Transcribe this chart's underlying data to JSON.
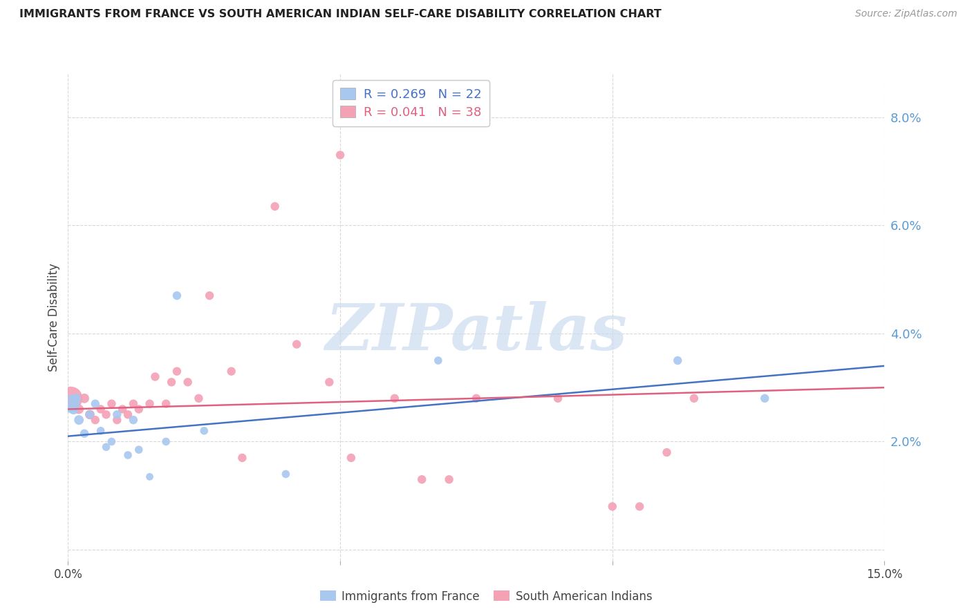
{
  "title": "IMMIGRANTS FROM FRANCE VS SOUTH AMERICAN INDIAN SELF-CARE DISABILITY CORRELATION CHART",
  "source": "Source: ZipAtlas.com",
  "ylabel": "Self-Care Disability",
  "yticks": [
    0.0,
    0.02,
    0.04,
    0.06,
    0.08
  ],
  "ytick_labels": [
    "",
    "2.0%",
    "4.0%",
    "6.0%",
    "8.0%"
  ],
  "xlim": [
    0.0,
    0.15
  ],
  "ylim": [
    -0.002,
    0.088
  ],
  "legend_label_france": "R = 0.269   N = 22",
  "legend_label_sai": "R = 0.041   N = 38",
  "france_color": "#a8c8f0",
  "france_line_color": "#4472c4",
  "sai_color": "#f4a0b5",
  "sai_line_color": "#e06080",
  "background_color": "#ffffff",
  "grid_color": "#d8d8d8",
  "watermark_text": "ZIPatlas",
  "watermark_color": "#ccdcf0",
  "france_x": [
    0.0005,
    0.001,
    0.0015,
    0.002,
    0.003,
    0.004,
    0.005,
    0.006,
    0.007,
    0.008,
    0.009,
    0.011,
    0.012,
    0.013,
    0.015,
    0.018,
    0.02,
    0.025,
    0.04,
    0.068,
    0.112,
    0.128
  ],
  "france_y": [
    0.027,
    0.026,
    0.028,
    0.024,
    0.0215,
    0.025,
    0.027,
    0.022,
    0.019,
    0.02,
    0.025,
    0.0175,
    0.024,
    0.0185,
    0.0135,
    0.02,
    0.047,
    0.022,
    0.014,
    0.035,
    0.035,
    0.028
  ],
  "france_size": [
    350,
    120,
    100,
    100,
    80,
    80,
    80,
    70,
    70,
    70,
    80,
    70,
    80,
    70,
    60,
    70,
    80,
    70,
    70,
    70,
    80,
    80
  ],
  "sai_x": [
    0.0005,
    0.001,
    0.002,
    0.003,
    0.004,
    0.005,
    0.006,
    0.007,
    0.008,
    0.009,
    0.01,
    0.011,
    0.012,
    0.013,
    0.015,
    0.016,
    0.018,
    0.019,
    0.02,
    0.022,
    0.024,
    0.026,
    0.03,
    0.032,
    0.038,
    0.042,
    0.048,
    0.05,
    0.052,
    0.06,
    0.065,
    0.07,
    0.075,
    0.09,
    0.1,
    0.105,
    0.11,
    0.115
  ],
  "sai_y": [
    0.028,
    0.027,
    0.026,
    0.028,
    0.025,
    0.024,
    0.026,
    0.025,
    0.027,
    0.024,
    0.026,
    0.025,
    0.027,
    0.026,
    0.027,
    0.032,
    0.027,
    0.031,
    0.033,
    0.031,
    0.028,
    0.047,
    0.033,
    0.017,
    0.0635,
    0.038,
    0.031,
    0.073,
    0.017,
    0.028,
    0.013,
    0.013,
    0.028,
    0.028,
    0.008,
    0.008,
    0.018,
    0.028
  ],
  "sai_size": [
    600,
    120,
    100,
    100,
    100,
    80,
    80,
    80,
    80,
    80,
    80,
    80,
    80,
    80,
    80,
    80,
    80,
    80,
    80,
    80,
    80,
    80,
    80,
    80,
    80,
    80,
    80,
    80,
    80,
    80,
    80,
    80,
    80,
    80,
    80,
    80,
    80,
    80
  ],
  "france_trend_x": [
    0.0,
    0.15
  ],
  "france_trend_y": [
    0.021,
    0.034
  ],
  "sai_trend_x": [
    0.0,
    0.15
  ],
  "sai_trend_y": [
    0.026,
    0.03
  ],
  "bottom_legend_france": "Immigrants from France",
  "bottom_legend_sai": "South American Indians"
}
